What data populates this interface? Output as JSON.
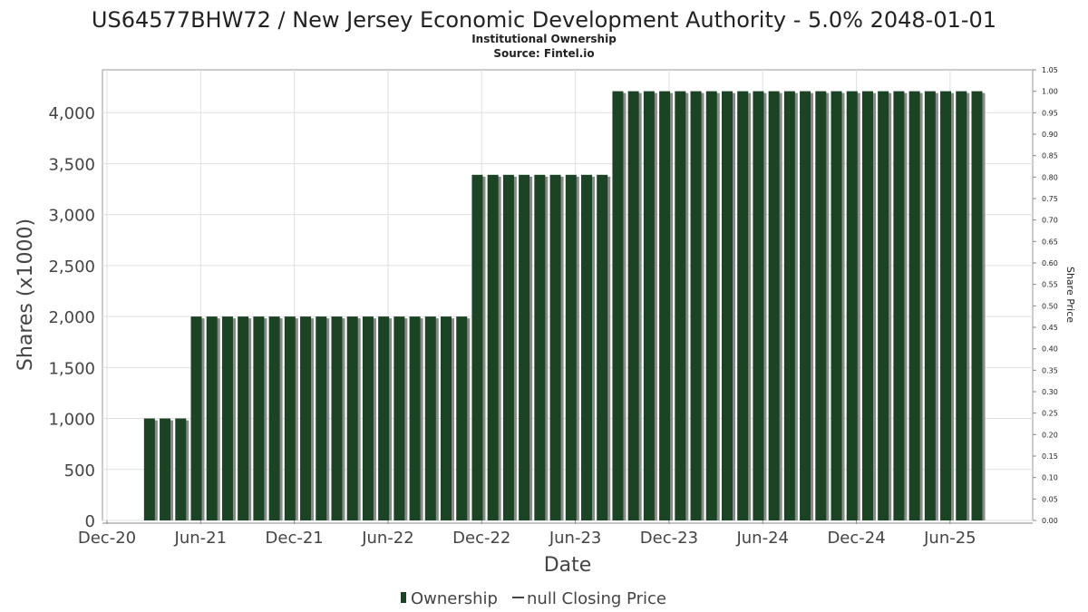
{
  "chart_data": {
    "type": "bar",
    "title": "US64577BHW72 / New Jersey Economic Development Authority - 5.0% 2048-01-01",
    "subtitle": "Institutional Ownership",
    "source": "Source: Fintel.io",
    "xlabel": "Date",
    "ylabel": "Shares (x1000)",
    "y2label": "Share Price",
    "ylim": [
      0,
      4420
    ],
    "y2lim": [
      0,
      1.05
    ],
    "yticks": [
      0,
      500,
      1000,
      1500,
      2000,
      2500,
      3000,
      3500,
      4000
    ],
    "ytick_labels": [
      "0",
      "500",
      "1,000",
      "1,500",
      "2,000",
      "2,500",
      "3,000",
      "3,500",
      "4,000"
    ],
    "y2tick_labels": [
      "0.00",
      "0.05",
      "0.10",
      "0.15",
      "0.20",
      "0.25",
      "0.30",
      "0.35",
      "0.40",
      "0.45",
      "0.50",
      "0.55",
      "0.60",
      "0.65",
      "0.70",
      "0.75",
      "0.80",
      "0.85",
      "0.90",
      "0.95",
      "1.00",
      "1.05"
    ],
    "xtick_labels": [
      "Dec-20",
      "Jun-21",
      "Dec-21",
      "Jun-22",
      "Dec-22",
      "Jun-23",
      "Dec-23",
      "Jun-24",
      "Dec-24",
      "Jun-25"
    ],
    "x_start_month": "Dec-20",
    "first_bar_month_offset": 3,
    "grid": true,
    "legend_position": "bottom",
    "legend": [
      "Ownership",
      "null Closing Price"
    ],
    "series": [
      {
        "name": "Ownership",
        "color": "#1a4423",
        "values": [
          1000,
          1000,
          1000,
          2000,
          2000,
          2000,
          2000,
          2000,
          2000,
          2000,
          2000,
          2000,
          2000,
          2000,
          2000,
          2000,
          2000,
          2000,
          2000,
          2000,
          2000,
          3390,
          3390,
          3390,
          3390,
          3390,
          3390,
          3390,
          3390,
          3390,
          4210,
          4210,
          4210,
          4210,
          4210,
          4210,
          4210,
          4210,
          4210,
          4210,
          4210,
          4210,
          4210,
          4210,
          4210,
          4210,
          4210,
          4210,
          4210,
          4210,
          4210,
          4210,
          4210,
          4210
        ]
      }
    ]
  }
}
